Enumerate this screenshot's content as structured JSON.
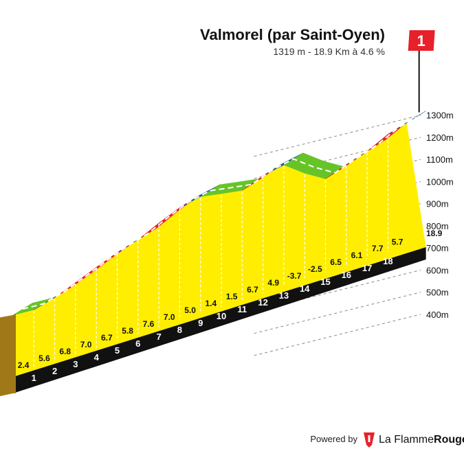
{
  "header": {
    "title": "Valmorel (par Saint-Oyen)",
    "subtitle": "1319 m - 18.9 Km à 4.6 %"
  },
  "flag": {
    "label": "1",
    "color": "#e8202a"
  },
  "footer": {
    "powered": "Powered by",
    "brand_regular": "La Flamme",
    "brand_bold": "Rouge"
  },
  "colors": {
    "fill": "#ffee00",
    "red": "#e8202a",
    "blue": "#1f5c8a",
    "green": "#66c428",
    "base": "#111111",
    "left_face": "#a07818"
  },
  "chart_data": {
    "type": "area",
    "title": "Valmorel (par Saint-Oyen)",
    "subtitle": "1319 m - 18.9 Km à 4.6 %",
    "xlabel": "",
    "ylabel": "",
    "x_range": [
      0,
      18.9
    ],
    "y_ticks": [
      "400m",
      "500m",
      "600m",
      "700m",
      "800m",
      "900m",
      "1000m",
      "1100m",
      "1200m",
      "1300m"
    ],
    "y_tick_values": [
      400,
      500,
      600,
      700,
      800,
      900,
      1000,
      1100,
      1200,
      1300
    ],
    "km_labels": [
      "1",
      "2",
      "3",
      "4",
      "5",
      "6",
      "7",
      "8",
      "9",
      "10",
      "11",
      "12",
      "13",
      "14",
      "15",
      "16",
      "17",
      "18"
    ],
    "end_label": "18.9",
    "gradients": [
      "2.4",
      "5.6",
      "6.8",
      "7.0",
      "6.7",
      "5.8",
      "7.6",
      "7.0",
      "5.0",
      "1.4",
      "1.5",
      "6.7",
      "4.9",
      "-3.7",
      "-2.5",
      "6.5",
      "6.1",
      "7.7",
      "5.7"
    ],
    "gradient_values": [
      2.4,
      5.6,
      6.8,
      7.0,
      6.7,
      5.8,
      7.6,
      7.0,
      5.0,
      1.4,
      1.5,
      6.7,
      4.9,
      -3.7,
      -2.5,
      6.5,
      6.1,
      7.7,
      5.7
    ],
    "segment_km": [
      1,
      1,
      1,
      1,
      1,
      1,
      1,
      1,
      1,
      1,
      1,
      1,
      1,
      1,
      1,
      1,
      1,
      1,
      0.9
    ],
    "start_altitude": 451,
    "summit_altitude": 1319,
    "grid": true
  }
}
